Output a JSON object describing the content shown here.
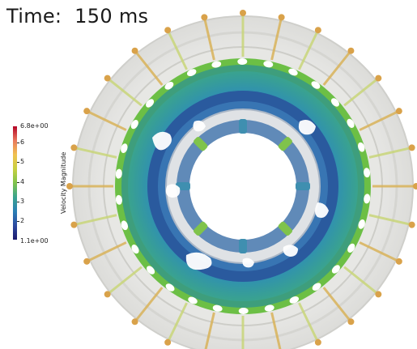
{
  "title": "Time:  150 ms",
  "colorbar": {
    "title": "Velocity Magnitude",
    "max_label": "6.8e+00",
    "min_label": "1.1e+00",
    "ticks": [
      "6",
      "5",
      "4",
      "3",
      "2"
    ],
    "range": [
      1.1,
      6.8
    ]
  },
  "scene": {
    "description_colors": {
      "high": "#d9a24a",
      "mid": "#7fc34b",
      "low": "#2c6fb0",
      "ring_fill": "#e3e4e2"
    }
  }
}
